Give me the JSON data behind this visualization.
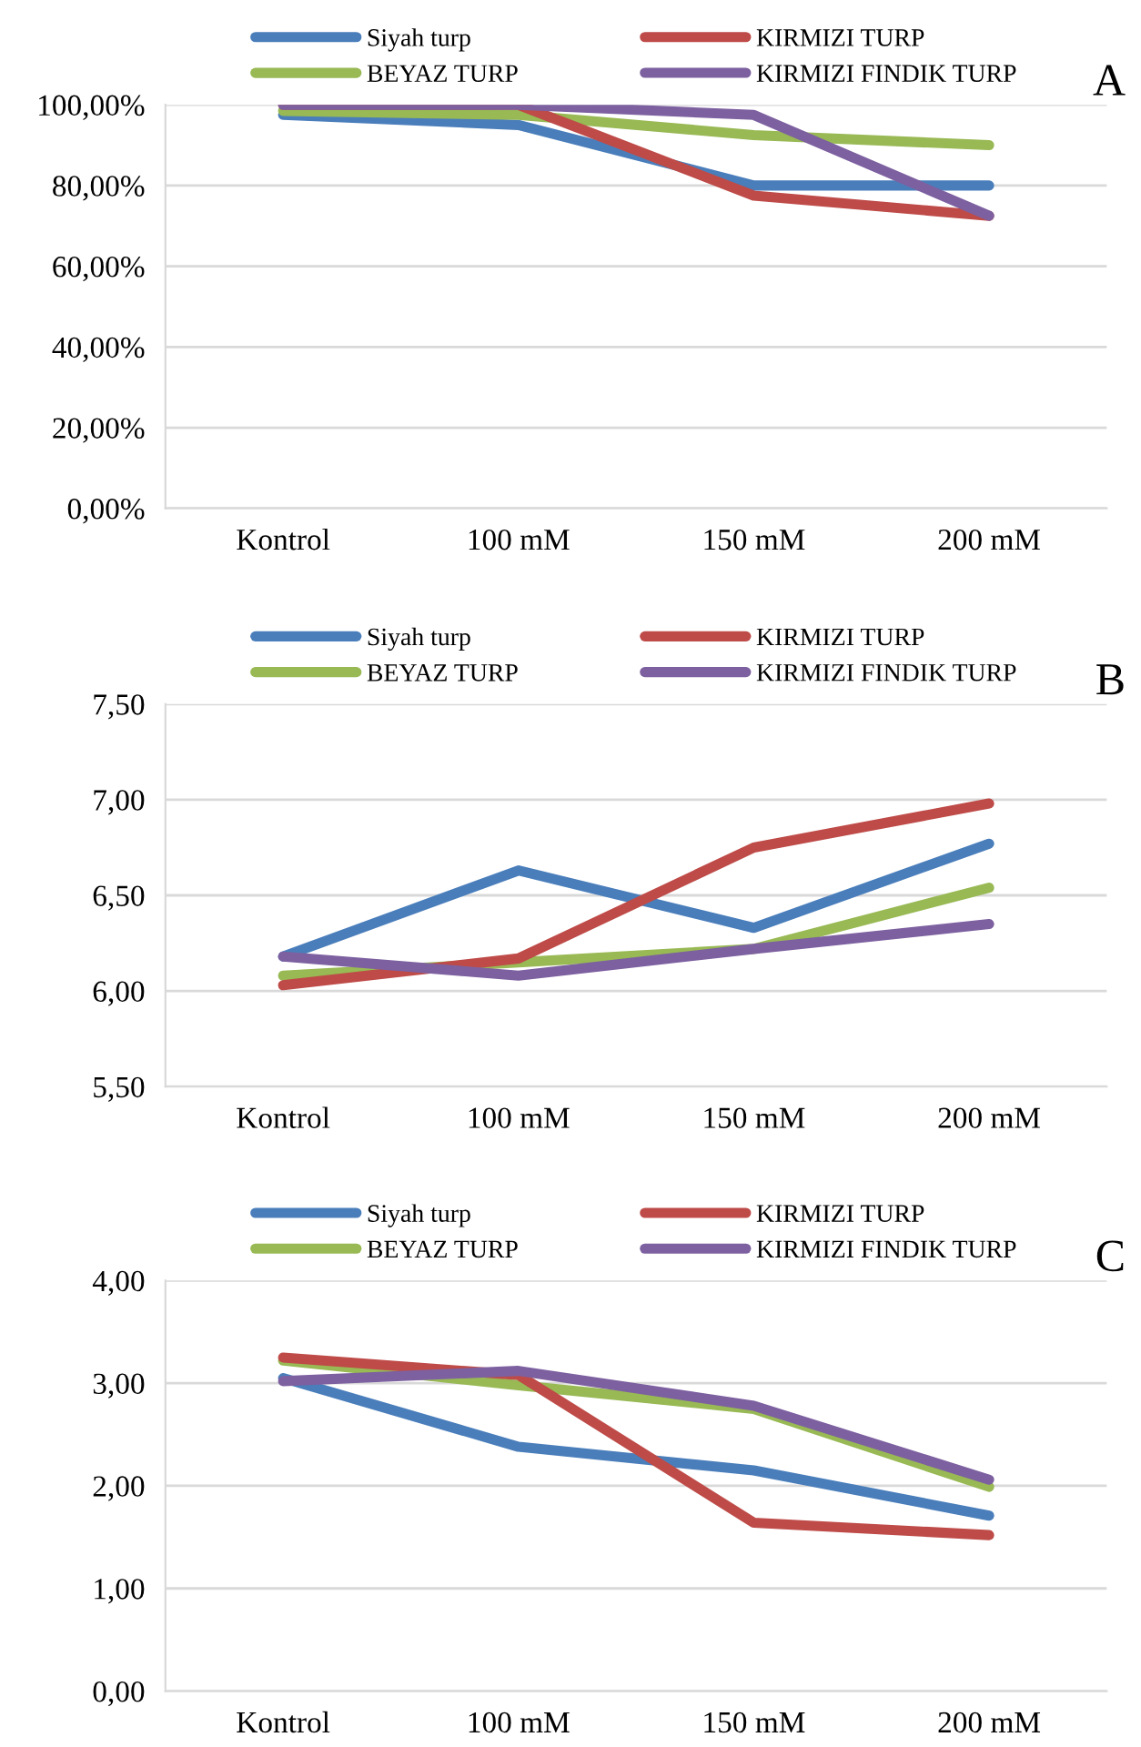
{
  "chart_data": [
    {
      "type": "line",
      "title": "A",
      "categories": [
        "Kontrol",
        "100 mM",
        "150 mM",
        "200 mM"
      ],
      "series": [
        {
          "name": "Siyah turp",
          "color": "#4a7ebb",
          "values": [
            97.5,
            95,
            80,
            80
          ]
        },
        {
          "name": "BEYAZ TURP",
          "color": "#98b954",
          "values": [
            98.5,
            97.5,
            92.5,
            90
          ]
        },
        {
          "name": "KIRMIZI TURP",
          "color": "#be4b48",
          "values": [
            100,
            100,
            77.5,
            72.5
          ]
        },
        {
          "name": "KIRMIZI FINDIK TURP",
          "color": "#7d60a0",
          "values": [
            100,
            100,
            97.5,
            72.5
          ]
        }
      ],
      "ylim": [
        0,
        100
      ],
      "yticks": [
        {
          "value": 0,
          "label": "0,00%"
        },
        {
          "value": 20,
          "label": "20,00%"
        },
        {
          "value": 40,
          "label": "40,00%"
        },
        {
          "value": 60,
          "label": "60,00%"
        },
        {
          "value": 80,
          "label": "80,00%"
        },
        {
          "value": 100,
          "label": "100,00%"
        }
      ],
      "grid": "y",
      "legend": "top",
      "marker": "none",
      "line_style": "solid"
    },
    {
      "type": "line",
      "title": "B",
      "categories": [
        "Kontrol",
        "100 mM",
        "150 mM",
        "200 mM"
      ],
      "series": [
        {
          "name": "Siyah turp",
          "color": "#4a7ebb",
          "values": [
            6.18,
            6.63,
            6.33,
            6.77
          ]
        },
        {
          "name": "BEYAZ TURP",
          "color": "#98b954",
          "values": [
            6.08,
            6.15,
            6.22,
            6.54
          ]
        },
        {
          "name": "KIRMIZI TURP",
          "color": "#be4b48",
          "values": [
            6.03,
            6.17,
            6.75,
            6.98
          ]
        },
        {
          "name": "KIRMIZI FINDIK TURP",
          "color": "#7d60a0",
          "values": [
            6.18,
            6.08,
            6.22,
            6.35
          ]
        }
      ],
      "ylim": [
        5.5,
        7.5
      ],
      "yticks": [
        {
          "value": 5.5,
          "label": "5,50"
        },
        {
          "value": 6,
          "label": "6,00"
        },
        {
          "value": 6.5,
          "label": "6,50"
        },
        {
          "value": 7,
          "label": "7,00"
        },
        {
          "value": 7.5,
          "label": "7,50"
        }
      ],
      "grid": "y",
      "legend": "top",
      "marker": "none",
      "line_style": "solid"
    },
    {
      "type": "line",
      "title": "C",
      "categories": [
        "Kontrol",
        "100 mM",
        "150 mM",
        "200 mM"
      ],
      "series": [
        {
          "name": "Siyah turp",
          "color": "#4a7ebb",
          "values": [
            3.05,
            2.38,
            2.15,
            1.71
          ]
        },
        {
          "name": "BEYAZ TURP",
          "color": "#98b954",
          "values": [
            3.22,
            2.98,
            2.75,
            1.99
          ]
        },
        {
          "name": "KIRMIZI TURP",
          "color": "#be4b48",
          "values": [
            3.25,
            3.08,
            1.64,
            1.52
          ]
        },
        {
          "name": "KIRMIZI FINDIK TURP",
          "color": "#7d60a0",
          "values": [
            3.02,
            3.12,
            2.78,
            2.06
          ]
        }
      ],
      "ylim": [
        0,
        4
      ],
      "yticks": [
        {
          "value": 0,
          "label": "0,00"
        },
        {
          "value": 1,
          "label": "1,00"
        },
        {
          "value": 2,
          "label": "2,00"
        },
        {
          "value": 3,
          "label": "3,00"
        },
        {
          "value": 4,
          "label": "4,00"
        }
      ],
      "grid": "y",
      "legend": "top",
      "marker": "none",
      "line_style": "solid"
    }
  ]
}
